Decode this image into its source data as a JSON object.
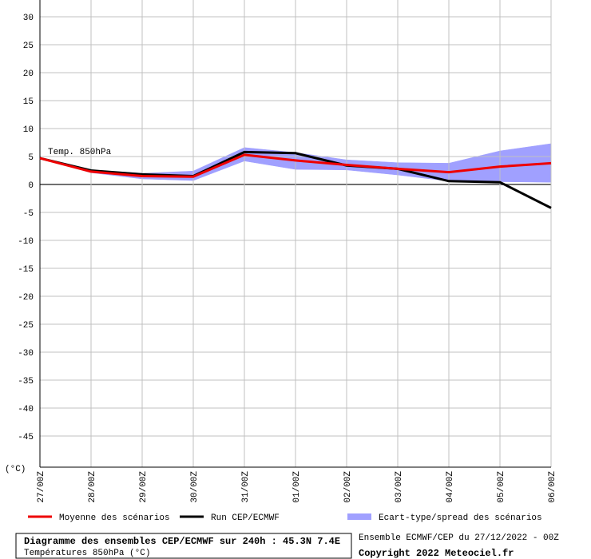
{
  "chart_data": {
    "type": "line",
    "title": "Diagramme des ensembles CEP/ECMWF sur 240h : 45.3N 7.4E",
    "subtitle": "Températures 850hPa (°C)",
    "run_info": "Ensemble ECMWF/CEP du 27/12/2022 - 00Z",
    "copyright": "Copyright 2022 Meteociel.fr",
    "annotation": "Temp. 850hPa",
    "y_label": "(°C)",
    "categories": [
      "27/00Z",
      "28/00Z",
      "29/00Z",
      "30/00Z",
      "31/00Z",
      "01/00Z",
      "02/00Z",
      "03/00Z",
      "04/00Z",
      "05/00Z",
      "06/00Z"
    ],
    "ylim": [
      -50,
      30
    ],
    "yticks": [
      -45,
      -40,
      -35,
      -30,
      -25,
      -20,
      -15,
      -10,
      -5,
      0,
      5,
      10,
      15,
      20,
      25,
      30
    ],
    "grid": true,
    "series": [
      {
        "name": "Moyenne des scénarios",
        "color": "#ee0000",
        "values": [
          4.7,
          2.3,
          1.5,
          1.4,
          5.3,
          4.3,
          3.5,
          2.8,
          2.2,
          3.2,
          3.8
        ]
      },
      {
        "name": "Run CEP/ECMWF",
        "color": "#000000",
        "values": [
          4.7,
          2.5,
          1.8,
          1.5,
          5.8,
          5.6,
          3.4,
          2.8,
          0.6,
          0.4,
          -4.2
        ]
      },
      {
        "name": "Ecart-type/spread des scénarios",
        "color": "#a0a0ff",
        "values": [
          4.7,
          2.6,
          2.0,
          2.4,
          6.6,
          5.7,
          4.4,
          3.9,
          3.8,
          6.0,
          7.3
        ],
        "lower": [
          4.7,
          2.1,
          1.0,
          0.7,
          4.2,
          2.7,
          2.6,
          1.7,
          0.6,
          0.5,
          0.4
        ]
      }
    ]
  }
}
